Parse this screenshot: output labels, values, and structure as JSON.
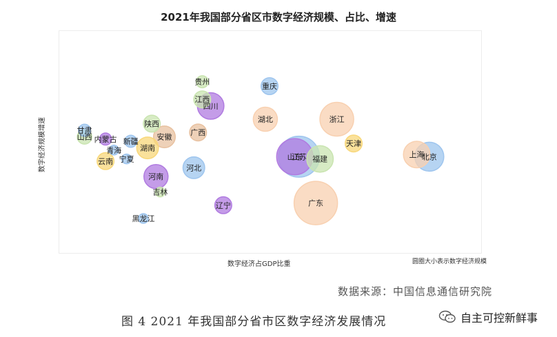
{
  "chart_data": {
    "type": "scatter",
    "title": "2021年我国部分省区市数字经济规模、占比、增速",
    "xlabel": "数字经济占GDP比重",
    "ylabel": "数字经济规模增速",
    "size_note": "圆圈大小表示数字经济规模",
    "grid": false,
    "points": [
      {
        "name": "甘肃",
        "x": 0.06,
        "y": 0.55,
        "size": 5,
        "color": "#9ec5ee"
      },
      {
        "name": "山西",
        "x": 0.06,
        "y": 0.52,
        "size": 6,
        "color": "#c9e4b0"
      },
      {
        "name": "内蒙古",
        "x": 0.11,
        "y": 0.51,
        "size": 5,
        "color": "#b07be0"
      },
      {
        "name": "青海",
        "x": 0.13,
        "y": 0.46,
        "size": 4,
        "color": "#9ec5ee"
      },
      {
        "name": "新疆",
        "x": 0.17,
        "y": 0.5,
        "size": 5,
        "color": "#9ec5ee"
      },
      {
        "name": "云南",
        "x": 0.11,
        "y": 0.41,
        "size": 7,
        "color": "#f8d77a"
      },
      {
        "name": "宁夏",
        "x": 0.16,
        "y": 0.42,
        "size": 4,
        "color": "#9ec5ee"
      },
      {
        "name": "陕西",
        "x": 0.22,
        "y": 0.58,
        "size": 7,
        "color": "#c9e4b0"
      },
      {
        "name": "安徽",
        "x": 0.25,
        "y": 0.52,
        "size": 9,
        "color": "#e8c1a0"
      },
      {
        "name": "湖南",
        "x": 0.21,
        "y": 0.47,
        "size": 9,
        "color": "#f8d77a"
      },
      {
        "name": "河南",
        "x": 0.23,
        "y": 0.34,
        "size": 10,
        "color": "#b07be0"
      },
      {
        "name": "吉林",
        "x": 0.24,
        "y": 0.27,
        "size": 4,
        "color": "#c9e4b0"
      },
      {
        "name": "黑龙江",
        "x": 0.2,
        "y": 0.15,
        "size": 4,
        "color": "#9ec5ee"
      },
      {
        "name": "贵州",
        "x": 0.34,
        "y": 0.77,
        "size": 5,
        "color": "#c9e4b0"
      },
      {
        "name": "江西",
        "x": 0.34,
        "y": 0.69,
        "size": 7,
        "color": "#c9e4b0"
      },
      {
        "name": "四川",
        "x": 0.36,
        "y": 0.66,
        "size": 11,
        "color": "#b07be0"
      },
      {
        "name": "广西",
        "x": 0.33,
        "y": 0.54,
        "size": 7,
        "color": "#e8c1a0"
      },
      {
        "name": "河北",
        "x": 0.32,
        "y": 0.38,
        "size": 9,
        "color": "#9ec5ee"
      },
      {
        "name": "辽宁",
        "x": 0.39,
        "y": 0.21,
        "size": 7,
        "color": "#b07be0"
      },
      {
        "name": "重庆",
        "x": 0.5,
        "y": 0.75,
        "size": 7,
        "color": "#9ec5ee"
      },
      {
        "name": "湖北",
        "x": 0.49,
        "y": 0.6,
        "size": 10,
        "color": "#f8d0b0"
      },
      {
        "name": "江苏",
        "x": 0.57,
        "y": 0.43,
        "size": 17,
        "color": "#9ec5ee"
      },
      {
        "name": "山东",
        "x": 0.56,
        "y": 0.43,
        "size": 15,
        "color": "#b07be0"
      },
      {
        "name": "福建",
        "x": 0.62,
        "y": 0.42,
        "size": 11,
        "color": "#c9e4b0"
      },
      {
        "name": "浙江",
        "x": 0.66,
        "y": 0.6,
        "size": 14,
        "color": "#f8d0b0"
      },
      {
        "name": "天津",
        "x": 0.7,
        "y": 0.49,
        "size": 7,
        "color": "#f8d77a"
      },
      {
        "name": "广东",
        "x": 0.61,
        "y": 0.22,
        "size": 18,
        "color": "#f8d0b0"
      },
      {
        "name": "上海",
        "x": 0.85,
        "y": 0.44,
        "size": 11,
        "color": "#f8d0b0"
      },
      {
        "name": "北京",
        "x": 0.88,
        "y": 0.43,
        "size": 12,
        "color": "#9ec5ee"
      }
    ]
  },
  "caption": {
    "source": "数据来源：中国信息通信研究院",
    "figure": "图 4 2021 年我国部分省市区数字经济发展情况"
  },
  "watermark": {
    "icon": "wechat-icon",
    "text": "自主可控新鲜事"
  }
}
